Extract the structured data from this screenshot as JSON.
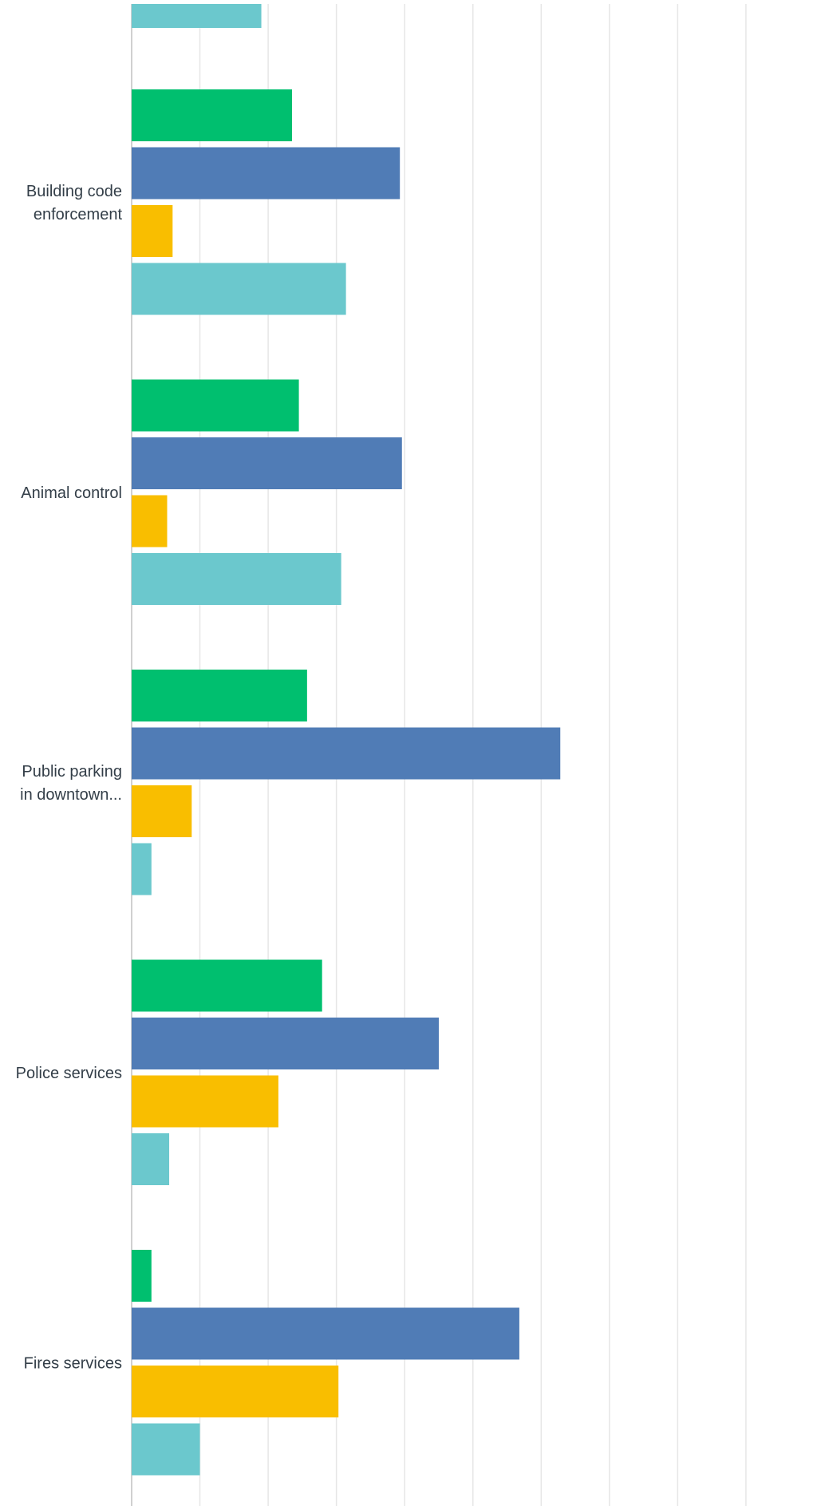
{
  "colors": {
    "series": [
      "#00bf6f",
      "#507cb6",
      "#f9be00",
      "#6bc8cd"
    ],
    "gridline": "#e6e6e6",
    "axis": "#d0d0d0",
    "label": "#333e48"
  },
  "chart_data": {
    "type": "bar",
    "orientation": "horizontal",
    "title": "",
    "xlabel": "",
    "ylabel": "",
    "xlim": [
      0,
      100
    ],
    "grid": true,
    "legend": "none",
    "top_partial_value": 19,
    "categories": [
      [
        "Building code",
        "enforcement"
      ],
      [
        "Animal control"
      ],
      [
        "Public parking",
        "in downtown..."
      ],
      [
        "Police services"
      ],
      [
        "Fires services"
      ]
    ],
    "series": [
      {
        "values": [
          23.5,
          24.5,
          25.7,
          27.9,
          2.9
        ]
      },
      {
        "values": [
          39.3,
          39.6,
          62.8,
          45.0,
          56.8
        ]
      },
      {
        "values": [
          6.0,
          5.2,
          8.8,
          21.5,
          30.3
        ]
      },
      {
        "values": [
          31.4,
          30.7,
          2.9,
          5.5,
          10.0
        ]
      }
    ]
  }
}
